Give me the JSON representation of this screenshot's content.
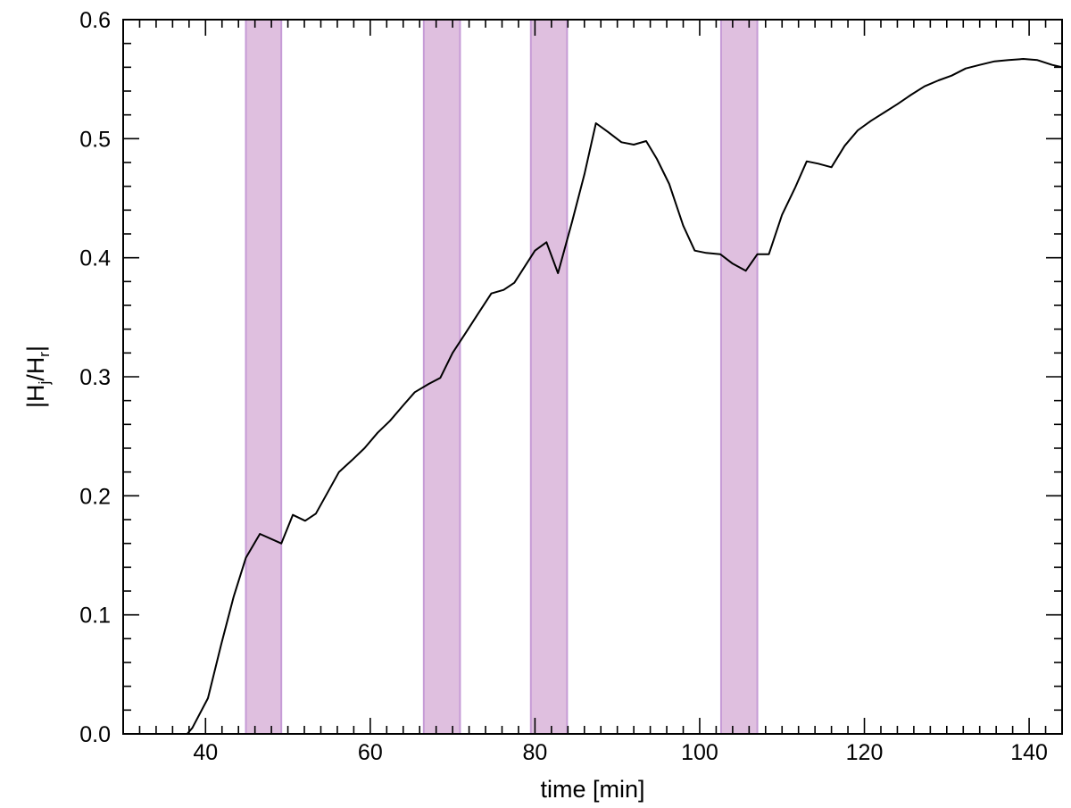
{
  "chart_data": {
    "type": "line",
    "title": "",
    "xlabel": "time [min]",
    "ylabel": {
      "pre": "|H",
      "sub1": "j",
      "mid": "/H",
      "sub2": "r",
      "post": "|"
    },
    "xlim": [
      30,
      144
    ],
    "ylim": [
      0,
      0.6
    ],
    "x_ticks": [
      40,
      60,
      80,
      100,
      120,
      140
    ],
    "y_ticks": [
      0.0,
      0.1,
      0.2,
      0.3,
      0.4,
      0.5,
      0.6
    ],
    "x_tick_labels": [
      "40",
      "60",
      "80",
      "100",
      "120",
      "140"
    ],
    "y_tick_labels": [
      "0.0",
      "0.1",
      "0.2",
      "0.3",
      "0.4",
      "0.5",
      "0.6"
    ],
    "x_minor_step": 2,
    "y_minor_step": 0.02,
    "grid": false,
    "bands": [
      {
        "x0": 44.9,
        "x1": 49.2
      },
      {
        "x0": 66.5,
        "x1": 70.9
      },
      {
        "x0": 79.5,
        "x1": 83.9
      },
      {
        "x0": 102.6,
        "x1": 107.0
      }
    ],
    "band_color": "#dfbfdf",
    "band_edge_color": "#c69bd6",
    "line_color": "#000000",
    "series": [
      {
        "x": [
          35.0,
          37.4,
          38.4,
          40.3,
          41.9,
          43.4,
          44.9,
          46.6,
          49.2,
          50.6,
          52.1,
          53.4,
          55.0,
          56.2,
          57.8,
          59.3,
          60.9,
          62.4,
          64.0,
          65.4,
          67.1,
          68.5,
          70.0,
          71.6,
          73.1,
          74.7,
          76.2,
          77.5,
          80.0,
          81.4,
          82.8,
          84.5,
          86.0,
          87.4,
          88.8,
          90.5,
          92.0,
          93.5,
          94.8,
          96.3,
          98.0,
          99.4,
          100.8,
          102.5,
          104.0,
          105.6,
          107.0,
          108.4,
          110.0,
          111.6,
          113.0,
          114.4,
          116.0,
          117.6,
          119.2,
          120.8,
          122.4,
          124.0,
          125.7,
          127.3,
          129.0,
          130.6,
          132.3,
          134.0,
          135.8,
          137.5,
          139.3,
          141.0,
          142.8,
          144.0
        ],
        "y": [
          -0.005,
          -0.003,
          0.005,
          0.03,
          0.075,
          0.115,
          0.148,
          0.168,
          0.16,
          0.184,
          0.179,
          0.185,
          0.205,
          0.22,
          0.23,
          0.24,
          0.253,
          0.263,
          0.276,
          0.287,
          0.294,
          0.299,
          0.32,
          0.337,
          0.353,
          0.37,
          0.373,
          0.379,
          0.406,
          0.413,
          0.387,
          0.43,
          0.47,
          0.513,
          0.506,
          0.497,
          0.495,
          0.498,
          0.483,
          0.462,
          0.427,
          0.406,
          0.404,
          0.403,
          0.395,
          0.389,
          0.403,
          0.403,
          0.436,
          0.459,
          0.481,
          0.479,
          0.476,
          0.494,
          0.507,
          0.515,
          0.522,
          0.529,
          0.537,
          0.544,
          0.549,
          0.553,
          0.559,
          0.562,
          0.565,
          0.566,
          0.567,
          0.566,
          0.562,
          0.56
        ]
      }
    ]
  }
}
